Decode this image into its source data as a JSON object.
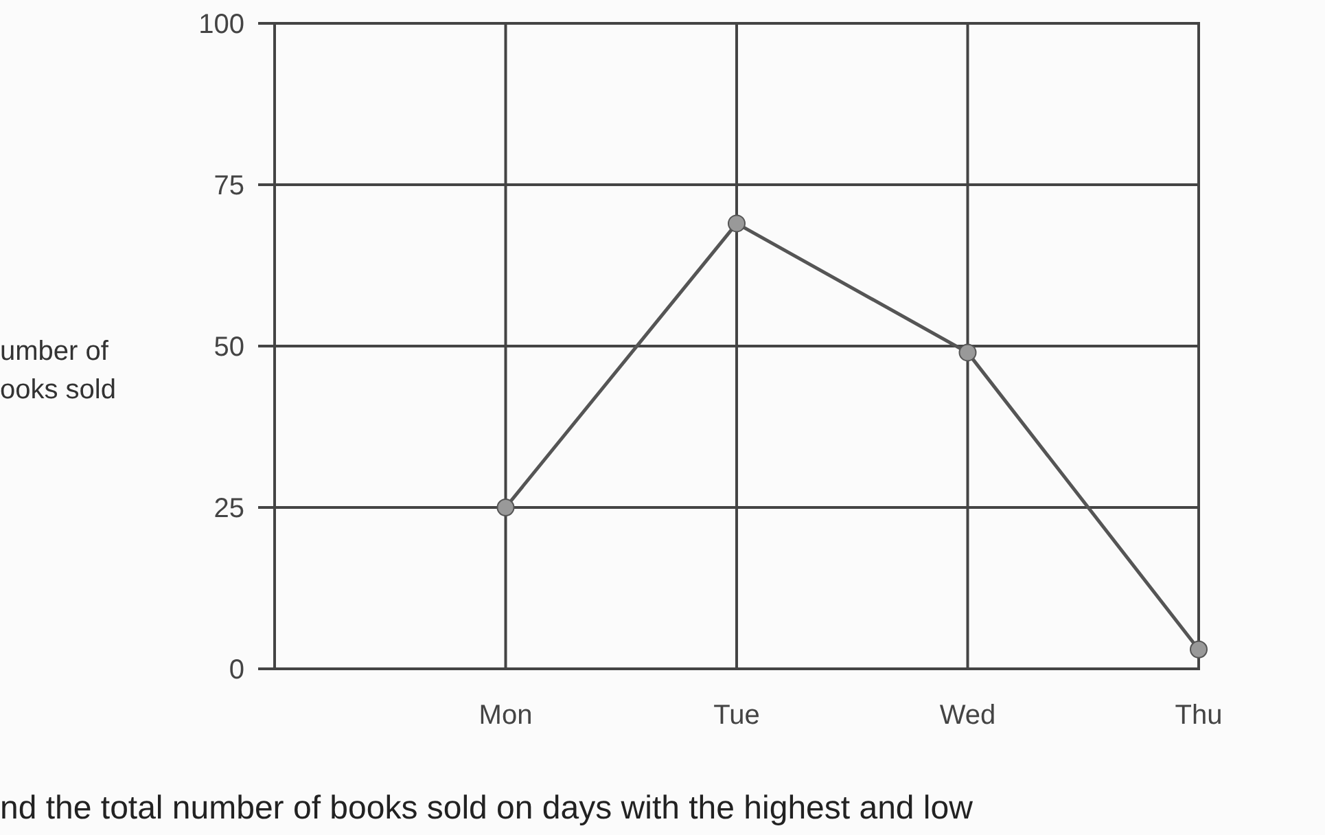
{
  "chart_data": {
    "type": "line",
    "ylabel": "umber of\nooks sold",
    "categories": [
      null,
      "Mon",
      "Tue",
      "Wed",
      "Thu"
    ],
    "series": [
      {
        "color": "#555555",
        "values": [
          null,
          25,
          69,
          49,
          3
        ]
      }
    ],
    "ylim": [
      0,
      100
    ],
    "yticks": [
      0,
      25,
      50,
      75,
      100
    ],
    "grid": true,
    "marker": "circle",
    "line_style": "solid",
    "annotations": [
      "nd the total number of books sold on days with the highest and low"
    ]
  }
}
